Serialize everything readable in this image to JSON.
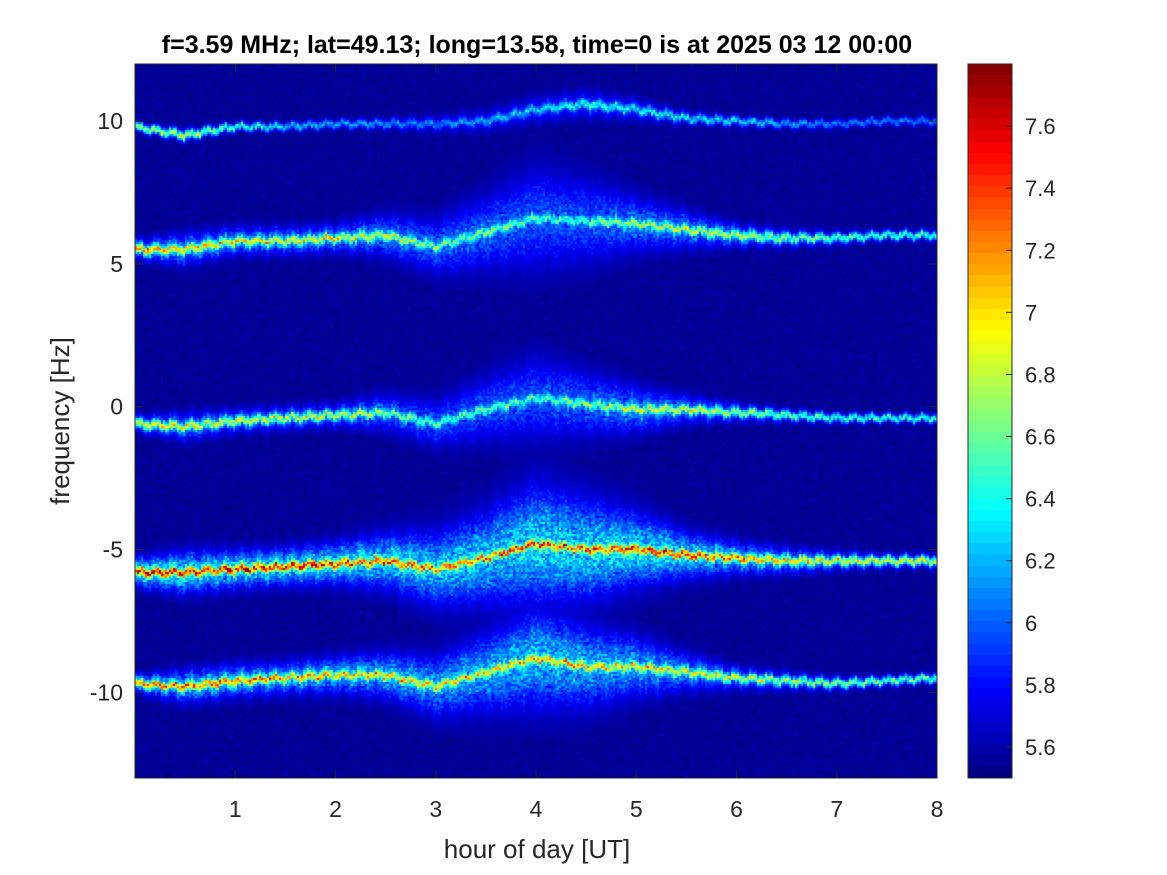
{
  "chart_data": {
    "type": "heatmap",
    "title": "f=3.59 MHz;  lat=49.13; long=13.58, time=0 is at 2025 03 12 00:00",
    "xlabel": "hour of day [UT]",
    "ylabel": "frequency [Hz]",
    "xlim": [
      0,
      8
    ],
    "ylim": [
      -13,
      12
    ],
    "x_ticks": [
      1,
      2,
      3,
      4,
      5,
      6,
      7,
      8
    ],
    "x_tick_labels": [
      "1",
      "2",
      "3",
      "4",
      "5",
      "6",
      "7",
      "8"
    ],
    "y_ticks": [
      10,
      5,
      0,
      -5,
      -10
    ],
    "y_tick_labels": [
      "10",
      "5",
      "0",
      "-5",
      "-10"
    ],
    "colormap": "jet",
    "colorbar": {
      "range": [
        5.5,
        7.8
      ],
      "ticks": [
        7.6,
        7.4,
        7.2,
        7,
        6.8,
        6.6,
        6.4,
        6.2,
        6,
        5.8,
        5.6
      ],
      "tick_labels": [
        "7.6",
        "7.4",
        "7.2",
        "7",
        "6.8",
        "6.6",
        "6.4",
        "6.2",
        "6",
        "5.8",
        "5.6"
      ],
      "placement": "right"
    },
    "background_value": 5.55,
    "traces": [
      {
        "x": [
          0,
          0.5,
          1,
          1.5,
          2,
          2.5,
          3,
          3.5,
          4,
          4.5,
          5,
          5.5,
          6,
          6.5,
          7,
          7.5,
          8
        ],
        "y": [
          9.8,
          9.5,
          9.8,
          9.8,
          9.9,
          9.9,
          9.9,
          10.0,
          10.4,
          10.6,
          10.4,
          10.1,
          10.0,
          9.9,
          9.9,
          10.0,
          10.0
        ],
        "peak": [
          6.8,
          6.8,
          6.5,
          6.3,
          6.2,
          6.1,
          6.1,
          6.2,
          6.3,
          6.5,
          6.4,
          6.4,
          6.3,
          6.2,
          6.1,
          6.1,
          6.1
        ],
        "spread": [
          0.1,
          0.15,
          0.1,
          0.1,
          0.1,
          0.15,
          0.2,
          0.25,
          0.3,
          0.3,
          0.25,
          0.15,
          0.12,
          0.1,
          0.08,
          0.08,
          0.08
        ]
      },
      {
        "x": [
          0,
          0.5,
          1,
          1.5,
          2,
          2.5,
          3,
          3.5,
          4,
          4.5,
          5,
          5.5,
          6,
          6.5,
          7,
          7.5,
          8
        ],
        "y": [
          5.5,
          5.5,
          5.8,
          5.8,
          5.9,
          6.0,
          5.6,
          6.1,
          6.6,
          6.5,
          6.4,
          6.2,
          6.0,
          5.9,
          5.9,
          6.0,
          6.0
        ],
        "peak": [
          7.3,
          7.1,
          7.0,
          7.0,
          7.0,
          6.9,
          6.7,
          6.7,
          6.6,
          6.6,
          6.8,
          6.9,
          6.9,
          6.7,
          6.6,
          6.5,
          6.5
        ],
        "spread": [
          0.2,
          0.35,
          0.3,
          0.3,
          0.3,
          0.45,
          0.6,
          0.8,
          1.1,
          0.9,
          0.6,
          0.4,
          0.25,
          0.2,
          0.15,
          0.12,
          0.12
        ]
      },
      {
        "x": [
          0,
          0.5,
          1,
          1.5,
          2,
          2.5,
          3,
          3.5,
          4,
          4.5,
          5,
          5.5,
          6,
          6.5,
          7,
          7.5,
          8
        ],
        "y": [
          -0.6,
          -0.7,
          -0.5,
          -0.4,
          -0.3,
          -0.2,
          -0.6,
          -0.1,
          0.3,
          0.1,
          -0.1,
          -0.1,
          -0.2,
          -0.3,
          -0.4,
          -0.4,
          -0.4
        ],
        "peak": [
          7.0,
          7.0,
          6.9,
          6.9,
          6.9,
          6.7,
          6.6,
          6.6,
          6.6,
          6.7,
          6.9,
          6.9,
          6.8,
          6.6,
          6.5,
          6.5,
          6.5
        ],
        "spread": [
          0.18,
          0.3,
          0.25,
          0.25,
          0.25,
          0.4,
          0.5,
          0.7,
          0.9,
          0.7,
          0.5,
          0.3,
          0.2,
          0.15,
          0.12,
          0.1,
          0.1
        ]
      },
      {
        "x": [
          0,
          0.5,
          1,
          1.5,
          2,
          2.5,
          3,
          3.5,
          4,
          4.5,
          5,
          5.5,
          6,
          6.5,
          7,
          7.5,
          8
        ],
        "y": [
          -5.8,
          -5.8,
          -5.7,
          -5.6,
          -5.5,
          -5.4,
          -5.7,
          -5.3,
          -4.8,
          -5.0,
          -5.0,
          -5.2,
          -5.3,
          -5.4,
          -5.4,
          -5.4,
          -5.4
        ],
        "peak": [
          7.7,
          7.6,
          7.6,
          7.6,
          7.5,
          7.4,
          7.3,
          7.3,
          7.4,
          7.4,
          7.5,
          7.4,
          7.3,
          7.1,
          7.0,
          6.9,
          6.9
        ],
        "spread": [
          0.3,
          0.45,
          0.4,
          0.4,
          0.45,
          0.6,
          0.8,
          1.0,
          1.3,
          1.1,
          0.8,
          0.5,
          0.35,
          0.28,
          0.2,
          0.16,
          0.15
        ]
      },
      {
        "x": [
          0,
          0.5,
          1,
          1.5,
          2,
          2.5,
          3,
          3.5,
          4,
          4.5,
          5,
          5.5,
          6,
          6.5,
          7,
          7.5,
          8
        ],
        "y": [
          -9.7,
          -9.8,
          -9.6,
          -9.5,
          -9.4,
          -9.4,
          -9.8,
          -9.3,
          -8.8,
          -9.1,
          -9.1,
          -9.3,
          -9.5,
          -9.6,
          -9.7,
          -9.6,
          -9.5
        ],
        "peak": [
          7.2,
          7.3,
          7.3,
          7.2,
          7.2,
          7.1,
          7.1,
          7.1,
          7.2,
          7.1,
          7.1,
          7.0,
          6.9,
          6.8,
          6.7,
          6.6,
          6.6
        ],
        "spread": [
          0.2,
          0.35,
          0.35,
          0.35,
          0.4,
          0.5,
          0.65,
          0.85,
          1.1,
          0.9,
          0.65,
          0.4,
          0.25,
          0.2,
          0.15,
          0.12,
          0.12
        ]
      }
    ]
  }
}
